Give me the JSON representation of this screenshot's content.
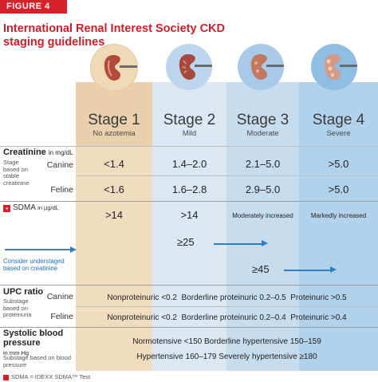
{
  "figure_label": "FIGURE 4",
  "title": "International Renal Interest Society CKD staging guidelines",
  "stages": [
    {
      "name": "Stage 1",
      "sub": "No azotemia"
    },
    {
      "name": "Stage 2",
      "sub": "Mild"
    },
    {
      "name": "Stage 3",
      "sub": "Moderate"
    },
    {
      "name": "Stage 4",
      "sub": "Severe"
    }
  ],
  "creatinine": {
    "label": "Creatinine",
    "unit": "in mg/dL",
    "substage_note": "Stage based on stable creatinine",
    "canine": {
      "label": "Canine",
      "values": [
        "<1.4",
        "1.4–2.0",
        "2.1–5.0",
        ">5.0"
      ]
    },
    "feline": {
      "label": "Feline",
      "values": [
        "<1.6",
        "1.6–2.8",
        "2.9–5.0",
        ">5.0"
      ]
    }
  },
  "sdma": {
    "icon": "sdma-icon",
    "label": "SDMA",
    "unit": "in µg/dL",
    "values": [
      ">14",
      ">14",
      "Moderately increased",
      "Markedly increased"
    ],
    "understaged_1": "≥25",
    "understaged_2": "≥45",
    "note": "Consider understaged based on creatinine"
  },
  "upc": {
    "label": "UPC ratio",
    "substage_note": "Substage based on proteinuria",
    "canine": {
      "label": "Canine",
      "nonproteinuric": "Nonproteinuric <0.2",
      "borderline": "Borderline proteinuric 0.2–0.5",
      "proteinuric": "Proteinuric >0.5"
    },
    "feline": {
      "label": "Feline",
      "nonproteinuric": "Nonproteinuric <0.2",
      "borderline": "Borderline proteinuric 0.2–0.4",
      "proteinuric": "Proteinuric >0.4"
    }
  },
  "bp": {
    "label": "Systolic blood pressure",
    "unit": "in mm Hg",
    "substage_note": "Substage based on blood pressure",
    "line1": "Normotensive <150   Borderline hypertensive 150–159",
    "line2": "Hypertensive 160–179   Severely hypertensive ≥180"
  },
  "footnote": "SDMA = IDEXX SDMA™ Test",
  "colors": {
    "red": "#d6202a",
    "stage1": "#f1dcc0",
    "stage2": "#dbe8f4",
    "stage3": "#c6dcef",
    "stage4": "#b2d1ea",
    "note_blue": "#1d6fb7"
  }
}
